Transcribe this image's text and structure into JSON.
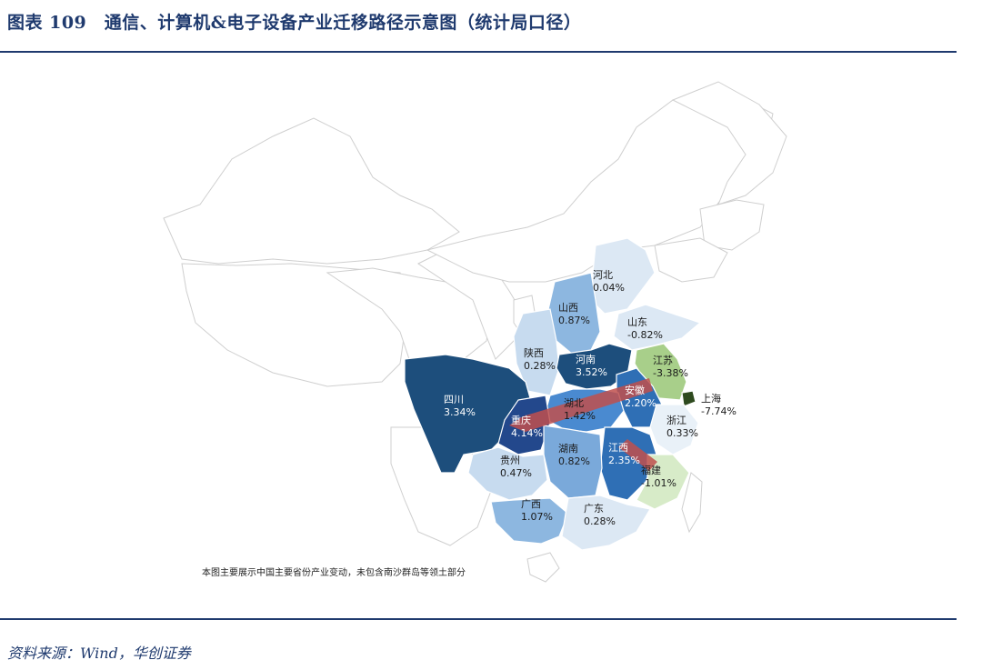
{
  "title": "图表 109　通信、计算机&电子设备产业迁移路径示意图（统计局口径）",
  "source": "资料来源：Wind，华创证券",
  "map_note": "本图主要展示中国主要省份产业变动，未包含南沙群岛等领土部分",
  "colors": {
    "strong_blue": "#1d4e7c",
    "mid_blue": "#2f6fb5",
    "light_blue": "#8db7e0",
    "pale_blue": "#c7dbef",
    "faint_blue": "#dce8f4",
    "light_green": "#a8cf8a",
    "pale_green": "#d7ebc8",
    "dark_green": "#2e4a1f",
    "arrow_red": "#c0504d"
  },
  "provinces": [
    {
      "key": "hebei",
      "name": "河北",
      "value": "0.04%"
    },
    {
      "key": "shanxi",
      "name": "山西",
      "value": "0.87%"
    },
    {
      "key": "shandong",
      "name": "山东",
      "value": "-0.82%"
    },
    {
      "key": "shaanxi",
      "name": "陕西",
      "value": "0.28%"
    },
    {
      "key": "henan",
      "name": "河南",
      "value": "3.52%"
    },
    {
      "key": "jiangsu",
      "name": "江苏",
      "value": "-3.38%"
    },
    {
      "key": "anhui",
      "name": "安徽",
      "value": "2.20%"
    },
    {
      "key": "shanghai",
      "name": "上海",
      "value": "-7.74%"
    },
    {
      "key": "sichuan",
      "name": "四川",
      "value": "3.34%"
    },
    {
      "key": "hubei",
      "name": "湖北",
      "value": "1.42%"
    },
    {
      "key": "chongqing",
      "name": "重庆",
      "value": "4.14%"
    },
    {
      "key": "zhejiang",
      "name": "浙江",
      "value": "0.33%"
    },
    {
      "key": "jiangxi",
      "name": "江西",
      "value": "2.35%"
    },
    {
      "key": "hunan",
      "name": "湖南",
      "value": "0.82%"
    },
    {
      "key": "guizhou",
      "name": "贵州",
      "value": "0.47%"
    },
    {
      "key": "fujian",
      "name": "福建",
      "value": "-1.01%"
    },
    {
      "key": "guangxi",
      "name": "广西",
      "value": "1.07%"
    },
    {
      "key": "guangdong",
      "name": "广东",
      "value": "0.28%"
    }
  ]
}
